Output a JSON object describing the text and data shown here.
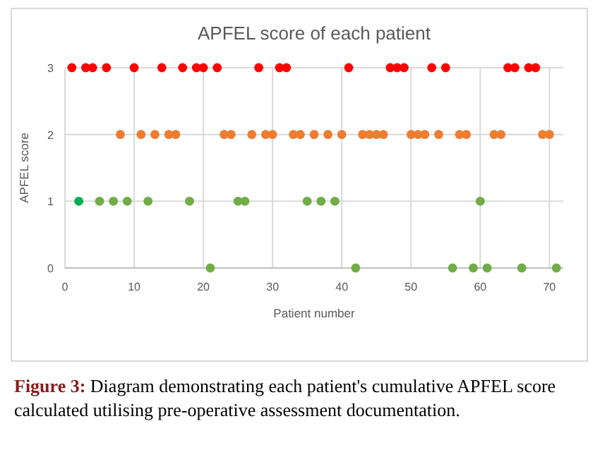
{
  "chart_data": {
    "type": "scatter",
    "title": "APFEL score of each patient",
    "xlabel": "Patient number",
    "ylabel": "APFEL score",
    "xlim": [
      0,
      72
    ],
    "xticks": [
      0,
      10,
      20,
      30,
      40,
      50,
      60,
      70
    ],
    "ylim": [
      0,
      3
    ],
    "yticks": [
      0,
      1,
      2,
      3
    ],
    "grid": true,
    "marker": "circle",
    "series": [
      {
        "color": "#ff0000",
        "x": [
          1,
          3,
          4,
          6,
          10,
          14,
          17,
          19,
          20,
          22,
          28,
          31,
          32,
          41,
          47,
          48,
          49,
          53,
          55,
          64,
          65,
          67,
          68
        ],
        "values": [
          3,
          3,
          3,
          3,
          3,
          3,
          3,
          3,
          3,
          3,
          3,
          3,
          3,
          3,
          3,
          3,
          3,
          3,
          3,
          3,
          3,
          3,
          3
        ]
      },
      {
        "color": "#ed7d31",
        "x": [
          8,
          11,
          13,
          15,
          16,
          23,
          24,
          27,
          29,
          30,
          33,
          34,
          36,
          38,
          40,
          43,
          44,
          45,
          46,
          50,
          51,
          52,
          54,
          57,
          58,
          62,
          63,
          69,
          70
        ],
        "values": [
          2,
          2,
          2,
          2,
          2,
          2,
          2,
          2,
          2,
          2,
          2,
          2,
          2,
          2,
          2,
          2,
          2,
          2,
          2,
          2,
          2,
          2,
          2,
          2,
          2,
          2,
          2,
          2,
          2
        ]
      },
      {
        "color": "#70ad47",
        "x": [
          5,
          7,
          9,
          12,
          18,
          25,
          26,
          35,
          37,
          39,
          60,
          21,
          42,
          56,
          59,
          61,
          66,
          71
        ],
        "values": [
          1,
          1,
          1,
          1,
          1,
          1,
          1,
          1,
          1,
          1,
          1,
          0,
          0,
          0,
          0,
          0,
          0,
          0
        ]
      },
      {
        "color": "#00b050",
        "x": [
          2
        ],
        "values": [
          1
        ]
      }
    ],
    "annotations": [
      "Figure 3: Diagram demonstrating each patient's cumulative APFEL score calculated utilising pre-operative assessment documentation."
    ]
  }
}
